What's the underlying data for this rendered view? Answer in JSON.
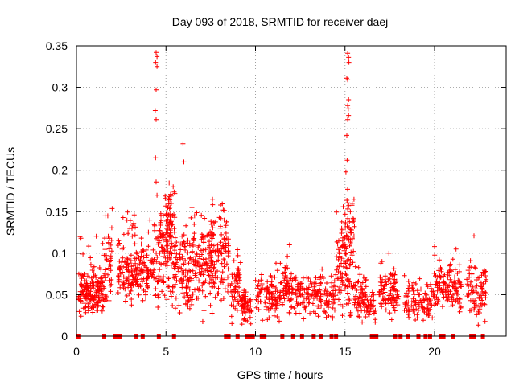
{
  "chart_data": {
    "type": "scatter",
    "title": "Day 093 of 2018, SRMTID for receiver daej",
    "xlabel": "GPS time / hours",
    "ylabel": "SRMTID / TECUs",
    "xlim": [
      0,
      24
    ],
    "ylim": [
      0,
      0.35
    ],
    "xticks": [
      0,
      5,
      10,
      15,
      20
    ],
    "xtick_labels": [
      "0",
      "5",
      "10",
      "15",
      "20"
    ],
    "yticks": [
      0,
      0.05,
      0.1,
      0.15,
      0.2,
      0.25,
      0.3,
      0.35
    ],
    "ytick_labels": [
      "0",
      "0.05",
      "0.1",
      "0.15",
      "0.2",
      "0.25",
      "0.3",
      "0.35"
    ],
    "grid": true,
    "marker": "+",
    "colors": {
      "points": "#ff0000",
      "zero_marks": "#ff0000",
      "grid": "#a0a0a0",
      "axes": "#000000"
    },
    "zero_markers_x": [
      0.1,
      0.15,
      1.55,
      2.15,
      2.3,
      2.45,
      3.35,
      3.7,
      4.6,
      5.45,
      8.35,
      8.5,
      9.0,
      9.55,
      9.65,
      9.75,
      9.85,
      10.35,
      10.5,
      11.5,
      12.1,
      12.6,
      13.25,
      13.65,
      14.25,
      14.5,
      16.5,
      16.6,
      16.75,
      17.8,
      18.1,
      18.5,
      19.1,
      19.5,
      19.75,
      20.35,
      20.5,
      21.05,
      22.05,
      22.2,
      22.7
    ],
    "clusters": [
      {
        "x0": 0.1,
        "x1": 1.6,
        "y": 0.052,
        "spread": 0.012,
        "n": 150
      },
      {
        "x0": 0.3,
        "x1": 1.5,
        "y": 0.07,
        "spread": 0.02,
        "n": 25
      },
      {
        "x0": 1.5,
        "x1": 2.0,
        "y": 0.085,
        "spread": 0.025,
        "n": 40
      },
      {
        "x0": 2.3,
        "x1": 4.0,
        "y": 0.078,
        "spread": 0.016,
        "n": 160
      },
      {
        "x0": 2.8,
        "x1": 3.3,
        "y": 0.12,
        "spread": 0.02,
        "n": 12
      },
      {
        "x0": 4.0,
        "x1": 4.6,
        "y": 0.085,
        "spread": 0.025,
        "n": 40
      },
      {
        "x0": 4.6,
        "x1": 5.6,
        "y": 0.105,
        "spread": 0.025,
        "n": 110
      },
      {
        "x0": 5.0,
        "x1": 5.5,
        "y": 0.14,
        "spread": 0.02,
        "n": 30
      },
      {
        "x0": 5.5,
        "x1": 6.5,
        "y": 0.075,
        "spread": 0.025,
        "n": 90
      },
      {
        "x0": 6.5,
        "x1": 7.6,
        "y": 0.09,
        "spread": 0.025,
        "n": 110
      },
      {
        "x0": 7.4,
        "x1": 8.5,
        "y": 0.095,
        "spread": 0.03,
        "n": 110
      },
      {
        "x0": 8.6,
        "x1": 9.2,
        "y": 0.06,
        "spread": 0.018,
        "n": 55
      },
      {
        "x0": 9.2,
        "x1": 9.8,
        "y": 0.035,
        "spread": 0.012,
        "n": 50
      },
      {
        "x0": 10.0,
        "x1": 10.4,
        "y": 0.05,
        "spread": 0.012,
        "n": 25
      },
      {
        "x0": 10.5,
        "x1": 12.5,
        "y": 0.052,
        "spread": 0.014,
        "n": 140
      },
      {
        "x0": 11.5,
        "x1": 12.2,
        "y": 0.075,
        "spread": 0.012,
        "n": 15
      },
      {
        "x0": 12.5,
        "x1": 14.5,
        "y": 0.05,
        "spread": 0.012,
        "n": 130
      },
      {
        "x0": 14.5,
        "x1": 15.5,
        "y": 0.085,
        "spread": 0.03,
        "n": 100
      },
      {
        "x0": 15.0,
        "x1": 15.6,
        "y": 0.13,
        "spread": 0.02,
        "n": 30
      },
      {
        "x0": 15.5,
        "x1": 16.2,
        "y": 0.05,
        "spread": 0.015,
        "n": 60
      },
      {
        "x0": 16.2,
        "x1": 16.7,
        "y": 0.038,
        "spread": 0.008,
        "n": 35
      },
      {
        "x0": 16.9,
        "x1": 18.0,
        "y": 0.052,
        "spread": 0.014,
        "n": 90
      },
      {
        "x0": 18.3,
        "x1": 19.9,
        "y": 0.042,
        "spread": 0.012,
        "n": 100
      },
      {
        "x0": 19.9,
        "x1": 20.6,
        "y": 0.06,
        "spread": 0.014,
        "n": 50
      },
      {
        "x0": 20.6,
        "x1": 21.5,
        "y": 0.058,
        "spread": 0.014,
        "n": 70
      },
      {
        "x0": 21.8,
        "x1": 22.9,
        "y": 0.055,
        "spread": 0.016,
        "n": 80
      }
    ],
    "extra_points": [
      [
        4.45,
        0.342
      ],
      [
        4.5,
        0.337
      ],
      [
        4.42,
        0.33
      ],
      [
        4.5,
        0.325
      ],
      [
        4.45,
        0.297
      ],
      [
        4.4,
        0.272
      ],
      [
        4.45,
        0.261
      ],
      [
        4.42,
        0.215
      ],
      [
        4.45,
        0.186
      ],
      [
        4.5,
        0.17
      ],
      [
        15.15,
        0.341
      ],
      [
        15.2,
        0.336
      ],
      [
        15.22,
        0.33
      ],
      [
        15.1,
        0.311
      ],
      [
        15.15,
        0.309
      ],
      [
        15.2,
        0.285
      ],
      [
        15.15,
        0.278
      ],
      [
        15.18,
        0.274
      ],
      [
        15.2,
        0.266
      ],
      [
        15.15,
        0.261
      ],
      [
        15.1,
        0.242
      ],
      [
        15.12,
        0.212
      ],
      [
        15.05,
        0.198
      ],
      [
        14.9,
        0.156
      ],
      [
        15.0,
        0.147
      ],
      [
        15.4,
        0.16
      ],
      [
        15.5,
        0.165
      ],
      [
        15.3,
        0.15
      ],
      [
        5.95,
        0.232
      ],
      [
        6.0,
        0.21
      ],
      [
        5.4,
        0.18
      ],
      [
        5.5,
        0.172
      ],
      [
        5.3,
        0.16
      ],
      [
        6.45,
        0.155
      ],
      [
        6.6,
        0.145
      ],
      [
        7.15,
        0.142
      ],
      [
        7.6,
        0.165
      ],
      [
        8.05,
        0.158
      ],
      [
        8.2,
        0.152
      ],
      [
        8.25,
        0.14
      ],
      [
        4.1,
        0.14
      ],
      [
        1.6,
        0.145
      ],
      [
        1.75,
        0.145
      ],
      [
        2.6,
        0.143
      ],
      [
        3.2,
        0.136
      ],
      [
        3.1,
        0.13
      ],
      [
        0.2,
        0.12
      ],
      [
        0.25,
        0.118
      ],
      [
        11.9,
        0.11
      ],
      [
        20.0,
        0.108
      ],
      [
        22.2,
        0.121
      ],
      [
        21.2,
        0.105
      ],
      [
        17.45,
        0.1
      ],
      [
        17.0,
        0.088
      ]
    ]
  }
}
